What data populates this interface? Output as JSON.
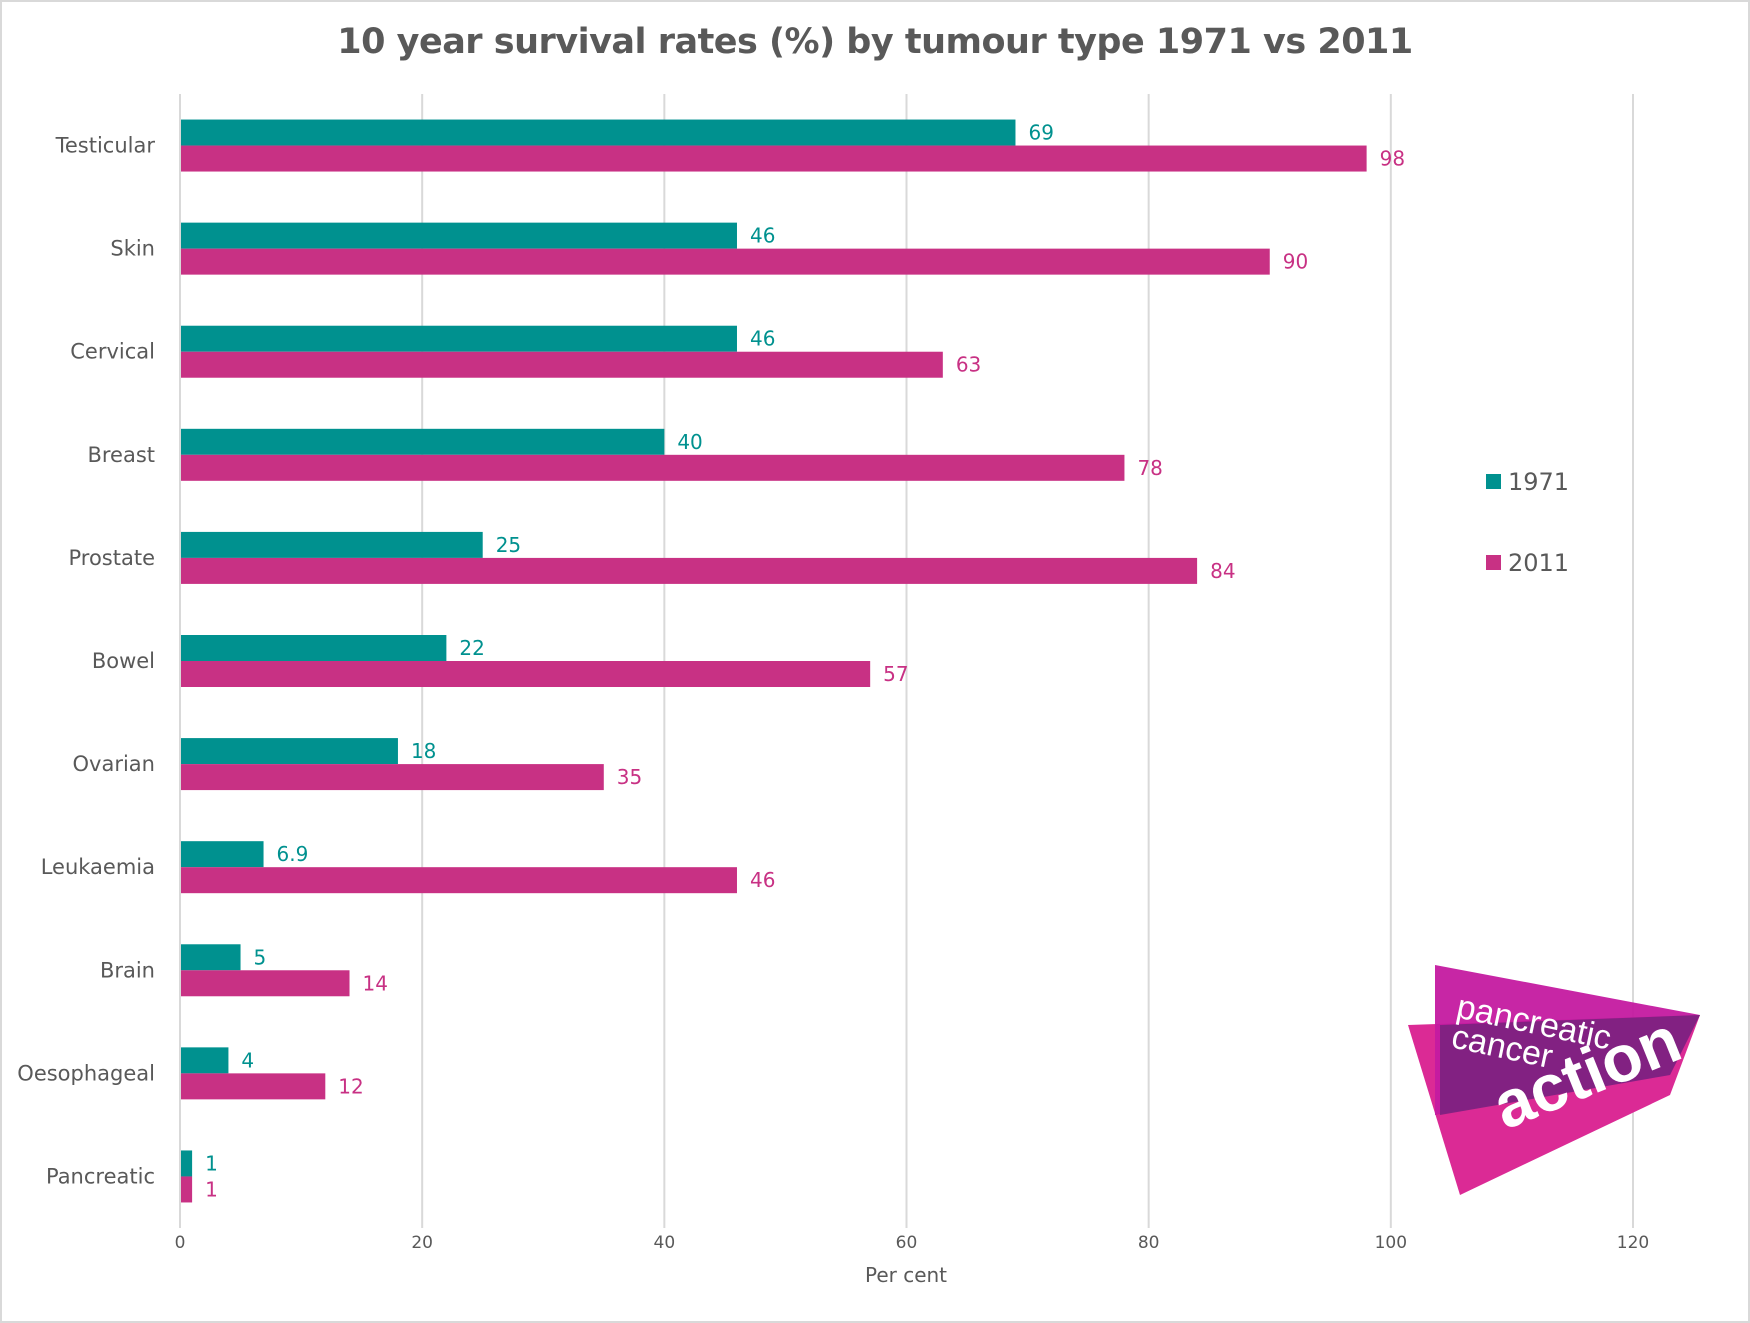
{
  "chart_data": {
    "type": "bar",
    "orientation": "horizontal",
    "title": "10 year survival rates (%) by tumour type 1971 vs 2011",
    "xlabel": "Per cent",
    "ylabel": "",
    "xlim": [
      0,
      120
    ],
    "x_ticks": [
      0,
      20,
      40,
      60,
      80,
      100,
      120
    ],
    "grid": true,
    "legend_position": "right",
    "categories": [
      "Testicular",
      "Skin",
      "Cervical",
      "Breast",
      "Prostate",
      "Bowel",
      "Ovarian",
      "Leukaemia",
      "Brain",
      "Oesophageal",
      "Pancreatic"
    ],
    "series": [
      {
        "name": "1971",
        "color": "#00918f",
        "values": [
          69,
          46,
          46,
          40,
          25,
          22,
          18,
          6.9,
          5,
          4,
          1
        ]
      },
      {
        "name": "2011",
        "color": "#c83184",
        "values": [
          98,
          90,
          63,
          78,
          84,
          57,
          35,
          46,
          14,
          12,
          1
        ]
      }
    ]
  },
  "logo": {
    "line1": "pancreatic",
    "line2": "cancer",
    "line3": "action"
  },
  "colors": {
    "text": "#595959",
    "grid": "#d9d9d9"
  }
}
